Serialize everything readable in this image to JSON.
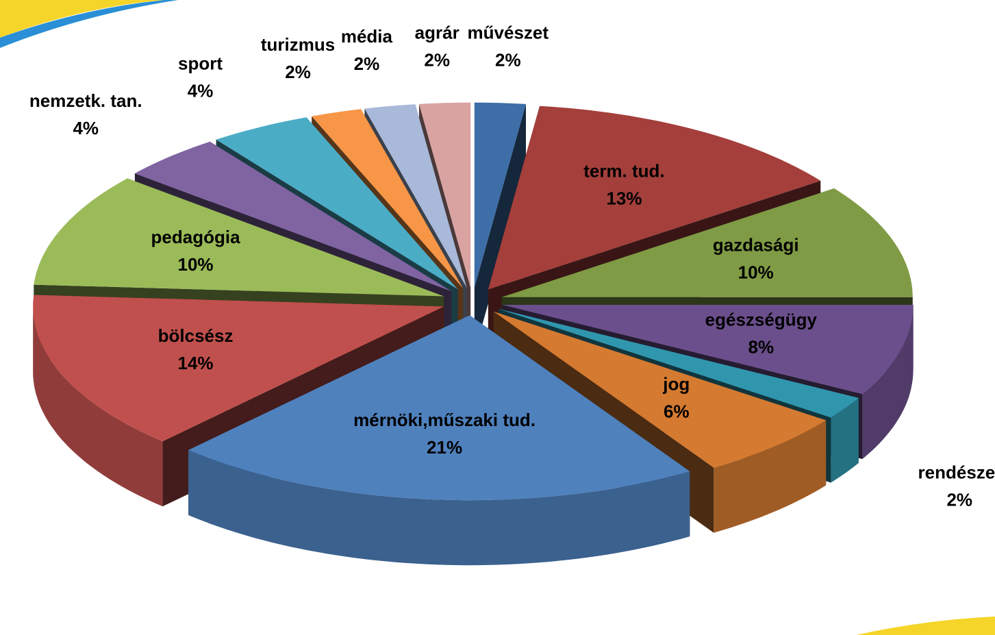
{
  "chart_data": {
    "type": "pie3d",
    "categories": [
      "művészet",
      "term. tud.",
      "gazdasági",
      "egészségügy",
      "rendészet",
      "jog",
      "mérnöki,műszaki tud.",
      "bölcsész",
      "pedagógia",
      "nemzetk. tan.",
      "sport",
      "turizmus",
      "média",
      "agrár"
    ],
    "values": [
      2,
      13,
      10,
      8,
      2,
      6,
      21,
      14,
      10,
      4,
      4,
      2,
      2,
      2
    ],
    "value_labels": [
      "2%",
      "13%",
      "10%",
      "8%",
      "2%",
      "6%",
      "21%",
      "14%",
      "10%",
      "4%",
      "4%",
      "2%",
      "2%",
      "2%"
    ],
    "colors": [
      "#3d6ea8",
      "#a43f3c",
      "#7f9b45",
      "#6b4f8c",
      "#3096ad",
      "#d57a31",
      "#4f81bd",
      "#c0504d",
      "#9bbb59",
      "#8064a2",
      "#4bacc6",
      "#f79646",
      "#a8b9da",
      "#d9a3a2"
    ]
  }
}
